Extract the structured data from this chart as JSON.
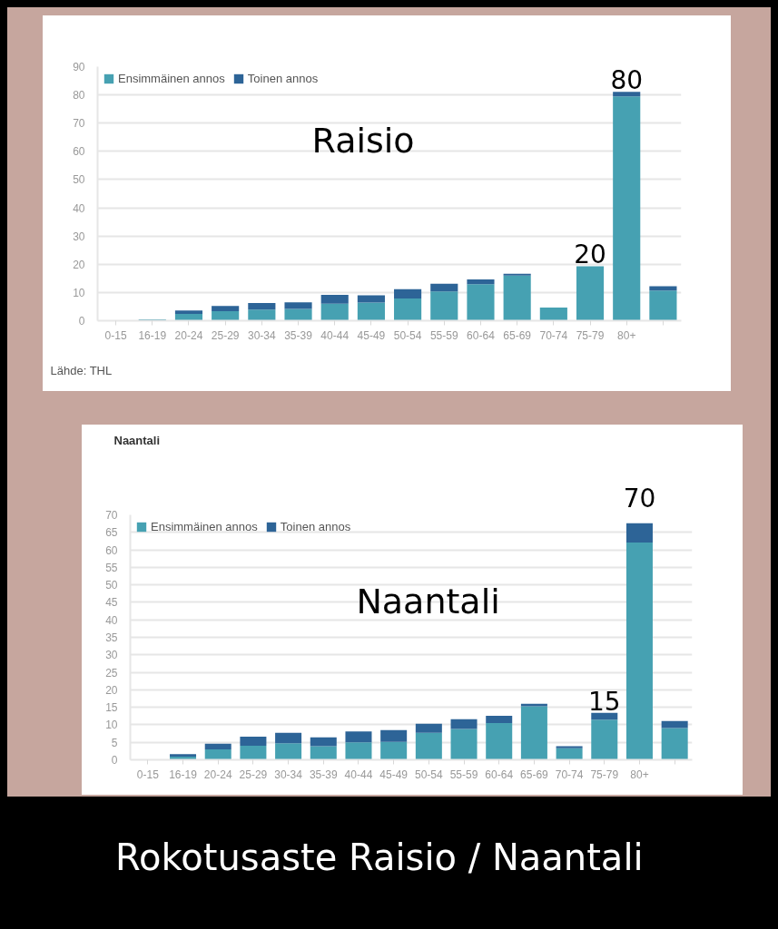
{
  "chart_data": [
    {
      "type": "bar",
      "title": "Raisio",
      "categories": [
        "0-15",
        "16-19",
        "20-24",
        "25-29",
        "30-34",
        "35-39",
        "40-44",
        "45-49",
        "50-54",
        "55-59",
        "60-64",
        "65-69",
        "70-74",
        "75-79",
        "80+",
        null
      ],
      "stacked": true,
      "series": [
        {
          "name": "Ensimmäinen annos",
          "color": "#46a1b2",
          "values": [
            0,
            0.5,
            2.4,
            3.4,
            3.9,
            4.2,
            6.0,
            6.4,
            7.9,
            10.4,
            12.9,
            16.0,
            4.7,
            19.3,
            79.5,
            10.7
          ]
        },
        {
          "name": "Toinen annos",
          "color": "#2d6497",
          "values": [
            0,
            0,
            1.2,
            1.8,
            2.4,
            2.3,
            3.2,
            2.6,
            3.3,
            2.7,
            1.7,
            0.6,
            0,
            0,
            1.6,
            1.5
          ]
        }
      ],
      "ylim": [
        0,
        90
      ],
      "yticks": [
        0,
        10,
        20,
        30,
        40,
        50,
        60,
        70,
        80,
        90
      ],
      "grid": "y",
      "legend": "top left",
      "annotations": [
        {
          "text": "80",
          "x": "80+",
          "y": 81.1
        },
        {
          "text": "20",
          "x": "75-79",
          "y": 19.3
        },
        "Lähde: THL"
      ]
    },
    {
      "type": "bar",
      "title": "Naantali",
      "subtitle": "Naantali",
      "categories": [
        "0-15",
        "16-19",
        "20-24",
        "25-29",
        "30-34",
        "35-39",
        "40-44",
        "45-49",
        "50-54",
        "55-59",
        "60-64",
        "65-69",
        "70-74",
        "75-79",
        "80+",
        null
      ],
      "stacked": true,
      "series": [
        {
          "name": "Ensimmäinen annos",
          "color": "#46a1b2",
          "values": [
            0,
            0.9,
            3.0,
            4.0,
            4.7,
            3.9,
            5.0,
            5.1,
            7.7,
            8.8,
            10.5,
            15.3,
            3.3,
            11.5,
            62.1,
            9.1
          ]
        },
        {
          "name": "Toinen annos",
          "color": "#2d6497",
          "values": [
            0,
            0.7,
            1.6,
            2.6,
            3.0,
            2.5,
            3.1,
            3.4,
            2.6,
            2.8,
            2.1,
            0.7,
            0.6,
            1.9,
            5.5,
            2.0
          ]
        }
      ],
      "ylim": [
        0,
        70
      ],
      "yticks": [
        0,
        5,
        10,
        15,
        20,
        25,
        30,
        35,
        40,
        45,
        50,
        55,
        60,
        65,
        70
      ],
      "grid": "y",
      "legend": "top left",
      "annotations": [
        {
          "text": "70",
          "x": "80+",
          "y": 67.6
        },
        {
          "text": "15",
          "x": "75-79",
          "y": 13.4
        }
      ]
    },
    {
      "type": "other",
      "title": "Rokotusaste Raisio / Naantali"
    }
  ]
}
